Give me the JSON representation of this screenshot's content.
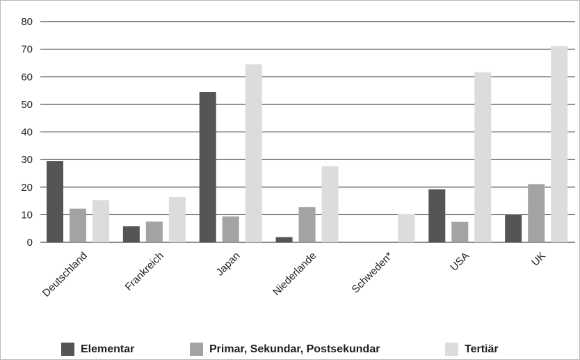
{
  "chart_data": {
    "type": "bar",
    "categories": [
      "Deutschland",
      "Frankreich",
      "Japan",
      "Niederlande",
      "Schweden*",
      "USA",
      "UK"
    ],
    "series": [
      {
        "name": "Elementar",
        "color": "#555555",
        "values": [
          29.5,
          5.8,
          54.5,
          1.9,
          0,
          19.2,
          10.0
        ]
      },
      {
        "name": "Primar, Sekundar, Postsekundar",
        "color": "#a3a3a3",
        "values": [
          12.2,
          7.5,
          9.4,
          12.8,
          0,
          7.4,
          21.1
        ]
      },
      {
        "name": "Tertiär",
        "color": "#dcdcdc",
        "values": [
          15.3,
          16.4,
          64.5,
          27.6,
          10.2,
          61.6,
          71.1
        ]
      }
    ],
    "ylim": [
      0,
      80
    ],
    "yticks": [
      0,
      10,
      20,
      30,
      40,
      50,
      60,
      70,
      80
    ],
    "grid": true,
    "legend_position": "bottom"
  }
}
